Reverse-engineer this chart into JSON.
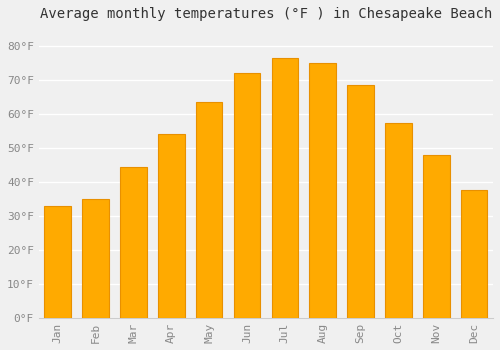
{
  "title": "Average monthly temperatures (°F ) in Chesapeake Beach",
  "months": [
    "Jan",
    "Feb",
    "Mar",
    "Apr",
    "May",
    "Jun",
    "Jul",
    "Aug",
    "Sep",
    "Oct",
    "Nov",
    "Dec"
  ],
  "values": [
    33,
    35,
    44.5,
    54,
    63.5,
    72,
    76.5,
    75,
    68.5,
    57.5,
    48,
    37.5
  ],
  "bar_color": "#FFAA00",
  "bar_edge_color": "#E89000",
  "background_color": "#F0F0F0",
  "plot_bg_color": "#F0F0F0",
  "grid_color": "#FFFFFF",
  "tick_label_color": "#888888",
  "title_color": "#333333",
  "ylim": [
    0,
    85
  ],
  "yticks": [
    0,
    10,
    20,
    30,
    40,
    50,
    60,
    70,
    80
  ],
  "ytick_labels": [
    "0°F",
    "10°F",
    "20°F",
    "30°F",
    "40°F",
    "50°F",
    "60°F",
    "70°F",
    "80°F"
  ],
  "title_fontsize": 10,
  "tick_fontsize": 8,
  "font_family": "monospace",
  "bar_width": 0.7
}
